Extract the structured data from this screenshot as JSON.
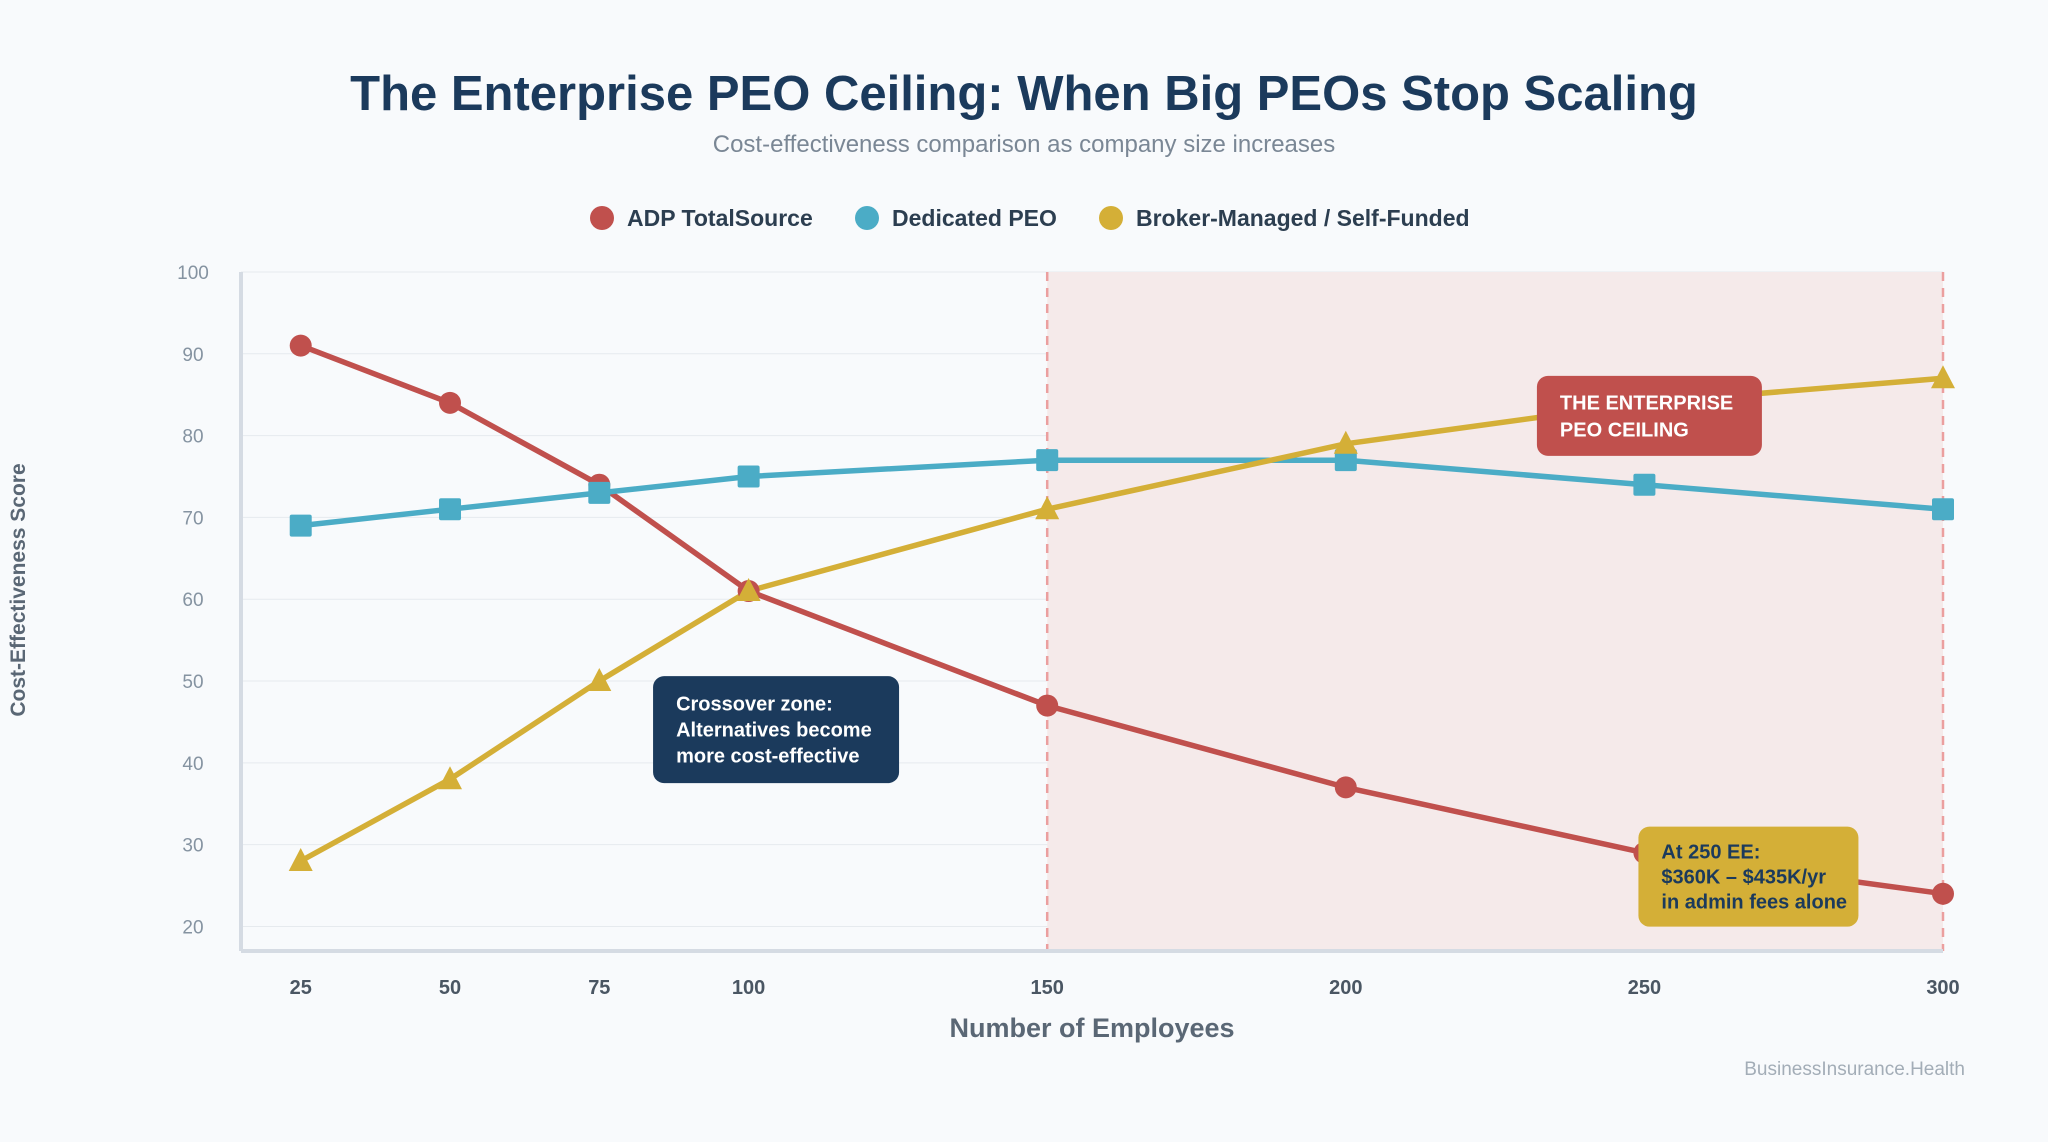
{
  "chart_data": {
    "type": "line",
    "title": "The Enterprise PEO Ceiling: When Big PEOs Stop Scaling",
    "subtitle": "Cost-effectiveness comparison as company size increases",
    "xlabel": "Number of Employees",
    "ylabel": "Cost-Effectiveness Score",
    "x": [
      25,
      50,
      75,
      100,
      150,
      200,
      250,
      300
    ],
    "xlim": [
      15,
      300
    ],
    "ylim": [
      17,
      100
    ],
    "yticks": [
      20,
      30,
      40,
      50,
      60,
      70,
      80,
      90,
      100
    ],
    "grid": true,
    "legend_position": "top-center",
    "series": [
      {
        "name": "ADP TotalSource",
        "color": "#c0504d",
        "marker": "circle",
        "values": [
          91,
          84,
          74,
          61,
          47,
          37,
          29,
          24
        ]
      },
      {
        "name": "Dedicated PEO",
        "color": "#4bacc6",
        "marker": "square",
        "values": [
          69,
          71,
          73,
          75,
          77,
          77,
          74,
          71
        ]
      },
      {
        "name": "Broker-Managed / Self-Funded",
        "color": "#d4af37",
        "marker": "triangle",
        "values": [
          28,
          38,
          50,
          61,
          71,
          79,
          84,
          87
        ]
      }
    ],
    "shaded_region": {
      "x_range": [
        150,
        300
      ],
      "color": "#f5eaea",
      "line_color": "#eb9f9f"
    },
    "annotations": [
      {
        "id": "crossover",
        "lines": [
          "Crossover zone:",
          "Alternatives become",
          "more cost-effective"
        ],
        "bg": "#1b3a5c",
        "fg": "#ffffff",
        "anchor": [
          84,
          50.6
        ]
      },
      {
        "id": "ceiling",
        "lines": [
          "THE ENTERPRISE",
          "PEO CEILING"
        ],
        "bg": "#c0504d",
        "fg": "#ffffff",
        "anchor": [
          232,
          87.3
        ]
      },
      {
        "id": "fees",
        "lines": [
          "At 250 EE:",
          "$360K – $435K/yr",
          "in admin fees alone"
        ],
        "bg": "#d4af37",
        "fg": "#1b3a5c",
        "anchor": [
          249,
          32.2
        ]
      }
    ],
    "source": "BusinessInsurance.Health"
  }
}
